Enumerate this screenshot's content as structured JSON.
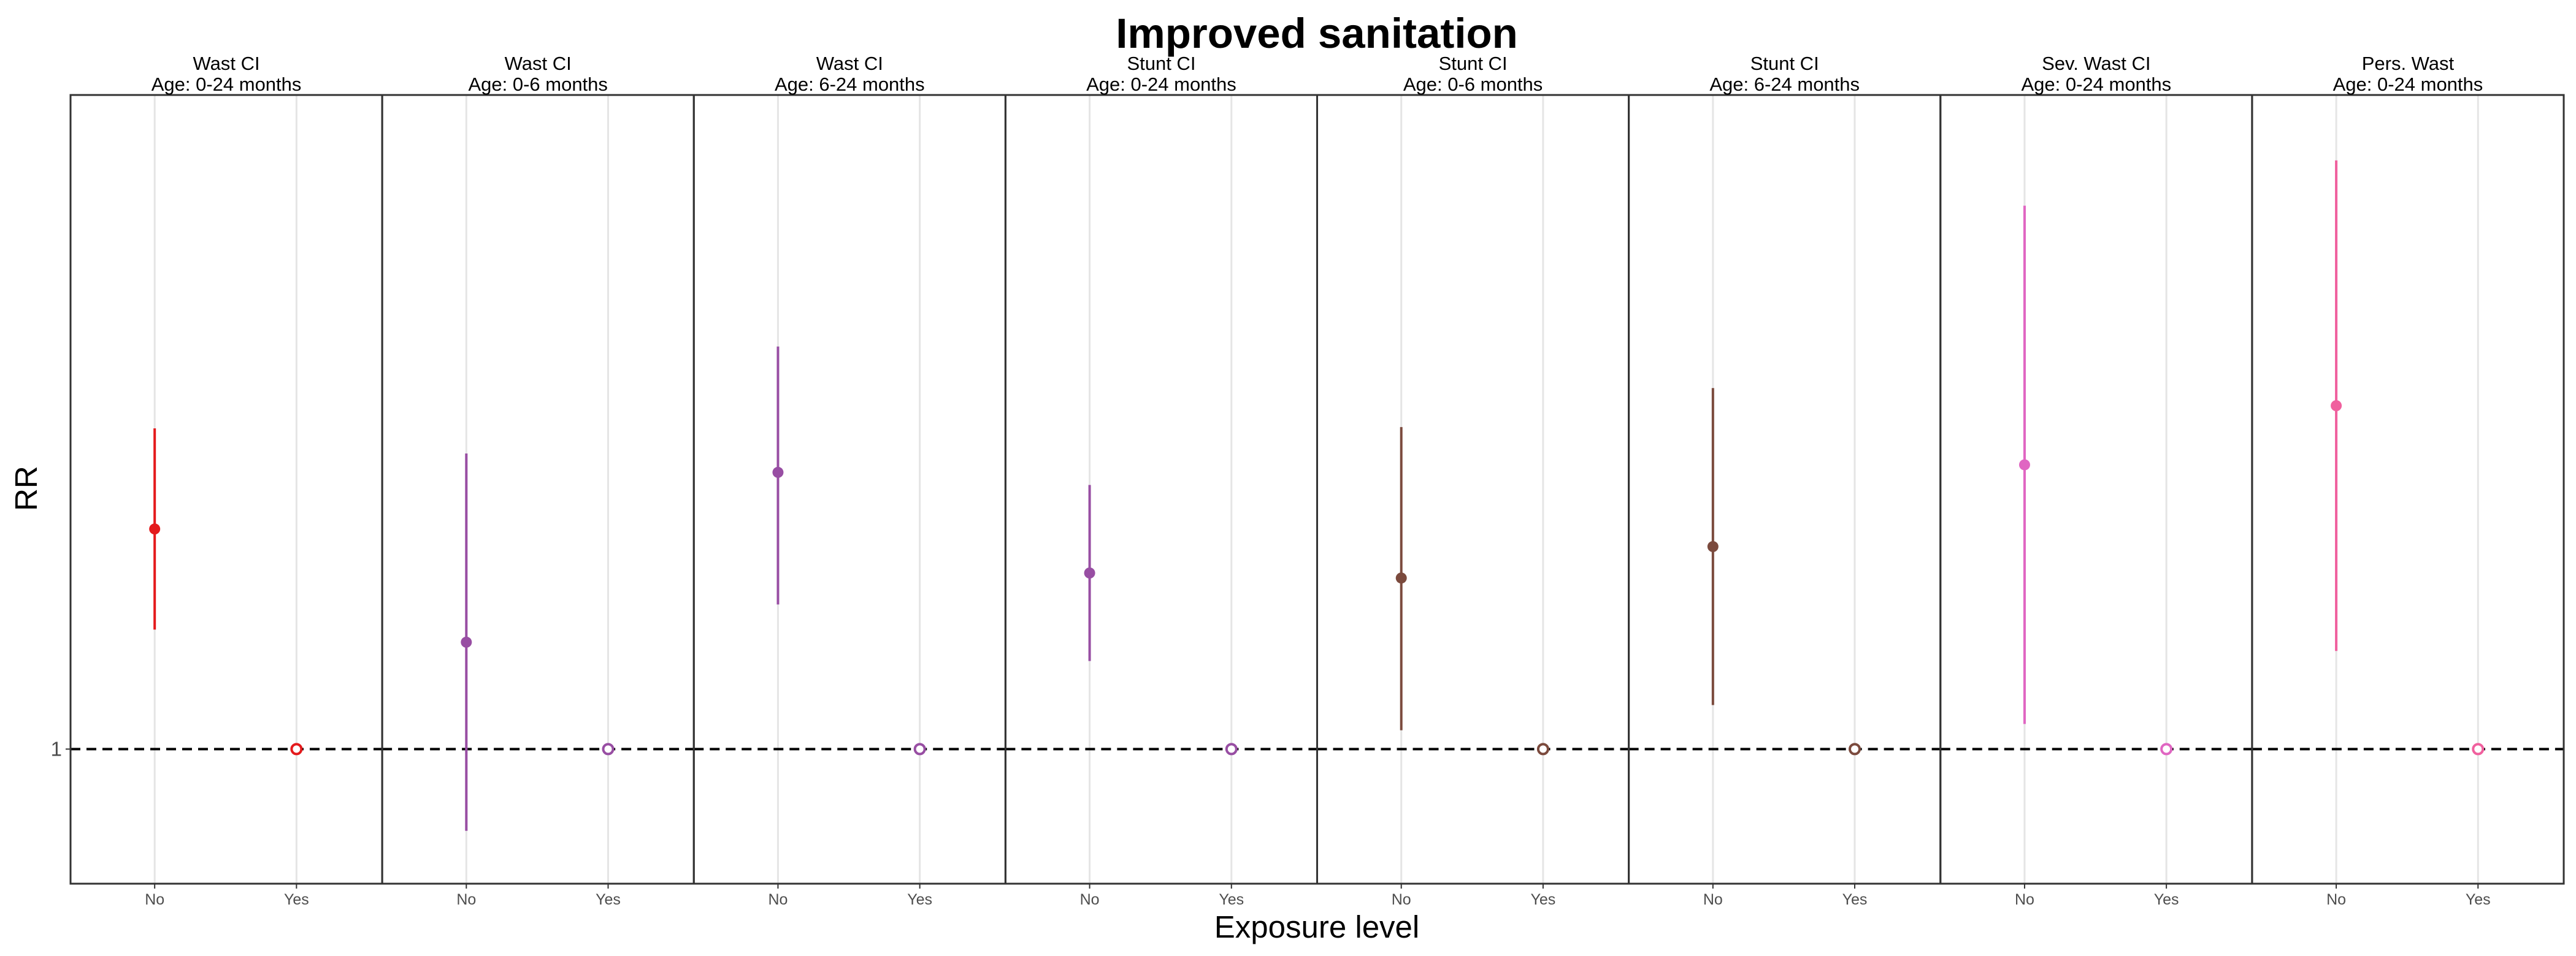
{
  "chart_data": {
    "type": "scatter",
    "title": "Improved sanitation",
    "xlabel": "Exposure level",
    "ylabel": "RR",
    "categories": [
      "No",
      "Yes"
    ],
    "y_ticks": [
      1
    ],
    "y_tick_labels": [
      "1"
    ],
    "reference_line": 1,
    "grid": "vertical",
    "panels": [
      {
        "outcome": "Wast CI",
        "age": "Age: 0-24 months",
        "color": "#e41a1c",
        "points": [
          {
            "x": "No",
            "rr": 1.175,
            "lower": 1.095,
            "upper": 1.255
          },
          {
            "x": "Yes",
            "rr": 1,
            "lower": 1,
            "upper": 1
          }
        ]
      },
      {
        "outcome": "Wast CI",
        "age": "Age: 0-6 months",
        "color": "#984ea3",
        "points": [
          {
            "x": "No",
            "rr": 1.085,
            "lower": 0.935,
            "upper": 1.235
          },
          {
            "x": "Yes",
            "rr": 1,
            "lower": 1,
            "upper": 1
          }
        ]
      },
      {
        "outcome": "Wast CI",
        "age": "Age: 6-24 months",
        "color": "#984ea3",
        "points": [
          {
            "x": "No",
            "rr": 1.22,
            "lower": 1.115,
            "upper": 1.32
          },
          {
            "x": "Yes",
            "rr": 1,
            "lower": 1,
            "upper": 1
          }
        ]
      },
      {
        "outcome": "Stunt CI",
        "age": "Age: 0-24 months",
        "color": "#984ea3",
        "points": [
          {
            "x": "No",
            "rr": 1.14,
            "lower": 1.07,
            "upper": 1.21
          },
          {
            "x": "Yes",
            "rr": 1,
            "lower": 1,
            "upper": 1
          }
        ]
      },
      {
        "outcome": "Stunt CI",
        "age": "Age: 0-6 months",
        "color": "#7b4a3d",
        "points": [
          {
            "x": "No",
            "rr": 1.136,
            "lower": 1.015,
            "upper": 1.256
          },
          {
            "x": "Yes",
            "rr": 1,
            "lower": 1,
            "upper": 1
          }
        ]
      },
      {
        "outcome": "Stunt CI",
        "age": "Age: 6-24 months",
        "color": "#7b4a3d",
        "points": [
          {
            "x": "No",
            "rr": 1.161,
            "lower": 1.035,
            "upper": 1.287
          },
          {
            "x": "Yes",
            "rr": 1,
            "lower": 1,
            "upper": 1
          }
        ]
      },
      {
        "outcome": "Sev. Wast CI",
        "age": "Age: 0-24 months",
        "color": "#e066c2",
        "points": [
          {
            "x": "No",
            "rr": 1.226,
            "lower": 1.02,
            "upper": 1.432
          },
          {
            "x": "Yes",
            "rr": 1,
            "lower": 1,
            "upper": 1
          }
        ]
      },
      {
        "outcome": "Pers. Wast",
        "age": "Age: 0-24 months",
        "color": "#f0609e",
        "points": [
          {
            "x": "No",
            "rr": 1.273,
            "lower": 1.078,
            "upper": 1.468
          },
          {
            "x": "Yes",
            "rr": 1,
            "lower": 1,
            "upper": 1
          }
        ]
      }
    ]
  }
}
